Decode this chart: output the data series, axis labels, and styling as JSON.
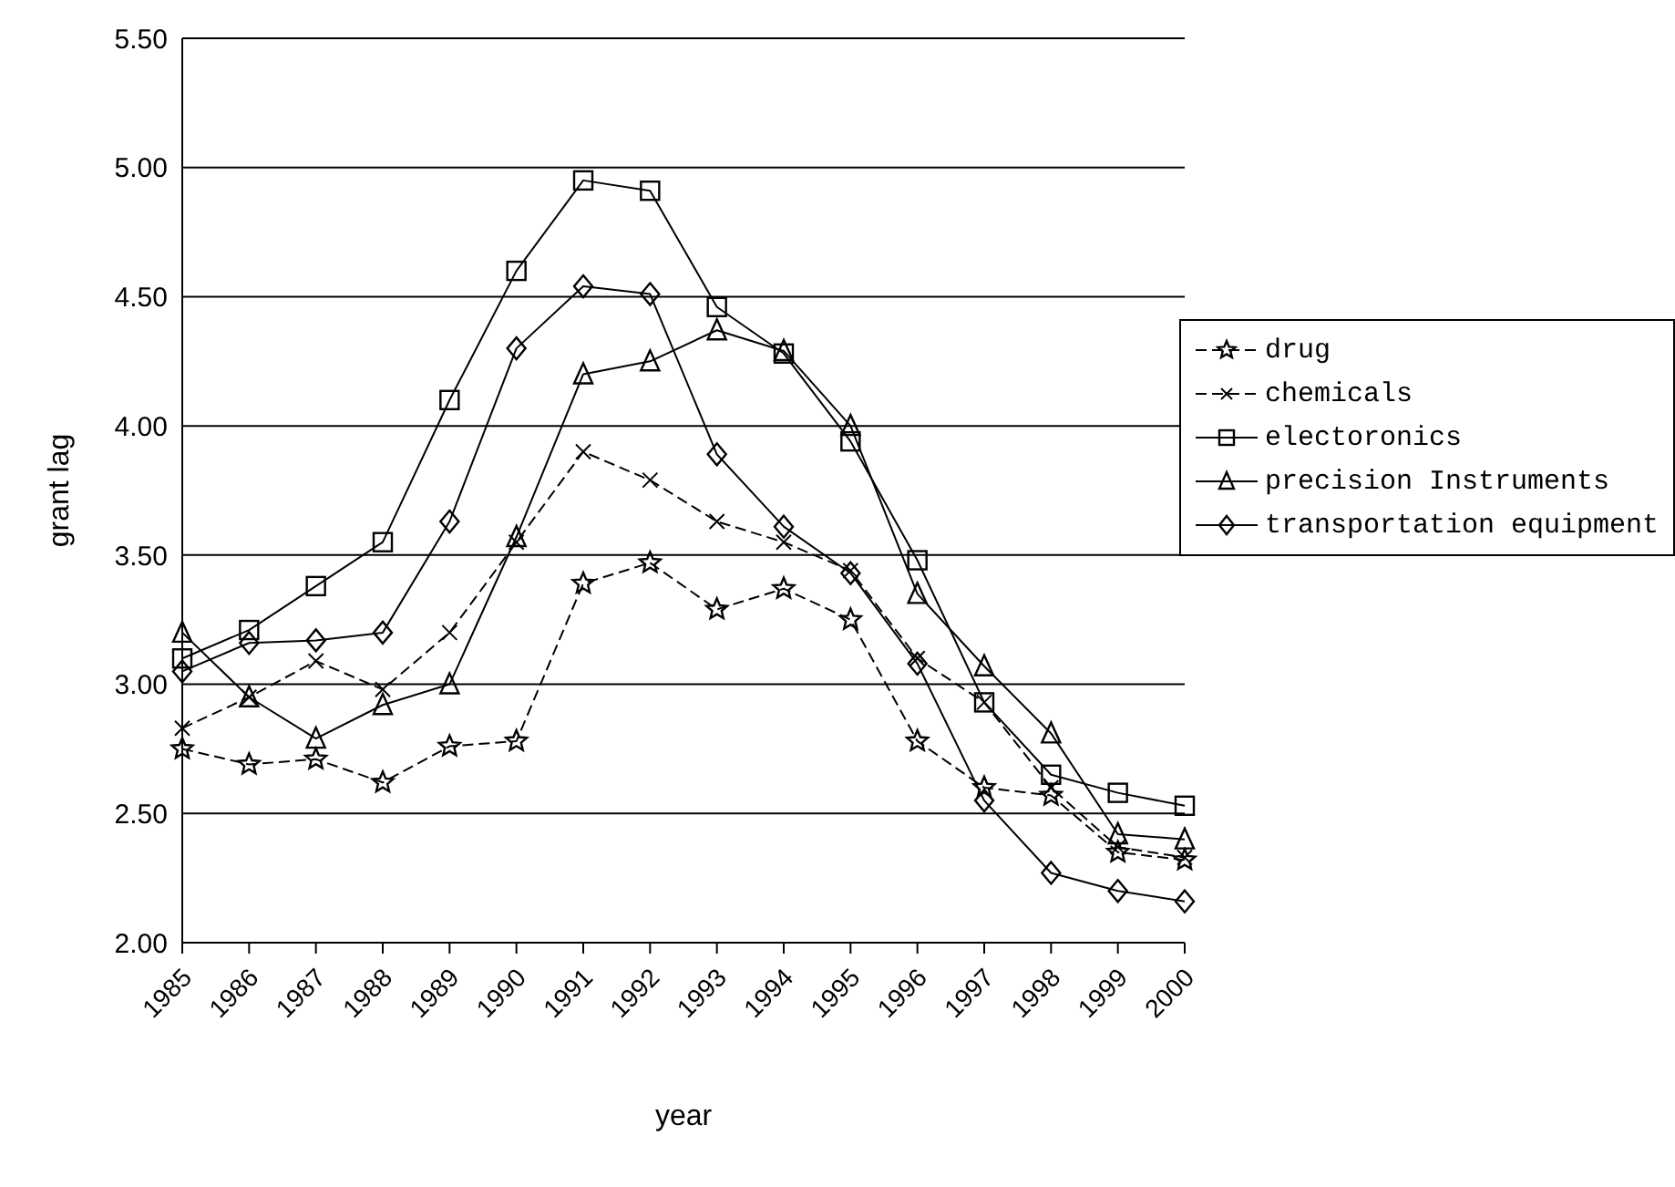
{
  "chart_data": {
    "type": "line",
    "xlabel": "year",
    "ylabel": "grant lag",
    "categories": [
      "1985",
      "1986",
      "1987",
      "1988",
      "1989",
      "1990",
      "1991",
      "1992",
      "1993",
      "1994",
      "1995",
      "1996",
      "1997",
      "1998",
      "1999",
      "2000"
    ],
    "ylim": [
      2.0,
      5.5
    ],
    "yticks": [
      {
        "value": 2.0,
        "label": "2.00"
      },
      {
        "value": 2.5,
        "label": "2.50"
      },
      {
        "value": 3.0,
        "label": "3.00"
      },
      {
        "value": 3.5,
        "label": "3.50"
      },
      {
        "value": 4.0,
        "label": "4.00"
      },
      {
        "value": 4.5,
        "label": "4.50"
      },
      {
        "value": 5.0,
        "label": "5.00"
      },
      {
        "value": 5.5,
        "label": "5.50"
      }
    ],
    "grid": "y",
    "legend": "right",
    "series": [
      {
        "name": "drug",
        "color": "#000000",
        "marker": "star",
        "line_style": "dashed",
        "values": [
          2.75,
          2.69,
          2.71,
          2.62,
          2.76,
          2.78,
          3.39,
          3.47,
          3.29,
          3.37,
          3.25,
          2.78,
          2.6,
          2.57,
          2.35,
          2.32
        ]
      },
      {
        "name": "chemicals",
        "color": "#000000",
        "marker": "cross",
        "line_style": "dashed",
        "values": [
          2.83,
          2.95,
          3.09,
          2.98,
          3.2,
          3.55,
          3.9,
          3.79,
          3.63,
          3.55,
          3.44,
          3.1,
          2.93,
          2.6,
          2.37,
          2.33
        ]
      },
      {
        "name": "electoronics",
        "color": "#000000",
        "marker": "square",
        "line_style": "solid",
        "values": [
          3.1,
          3.21,
          3.38,
          3.55,
          4.1,
          4.6,
          4.95,
          4.91,
          4.46,
          4.28,
          3.94,
          3.48,
          2.93,
          2.65,
          2.58,
          2.53
        ]
      },
      {
        "name": "precision Instruments",
        "color": "#000000",
        "marker": "triangle",
        "line_style": "solid",
        "values": [
          3.2,
          2.95,
          2.79,
          2.92,
          3.0,
          3.57,
          4.2,
          4.25,
          4.37,
          4.29,
          4.0,
          3.35,
          3.07,
          2.81,
          2.42,
          2.4
        ]
      },
      {
        "name": "transportation equipment",
        "color": "#000000",
        "marker": "diamond",
        "line_style": "solid",
        "values": [
          3.05,
          3.16,
          3.17,
          3.2,
          3.63,
          4.3,
          4.54,
          4.51,
          3.89,
          3.61,
          3.43,
          3.08,
          2.55,
          2.27,
          2.2,
          2.16
        ]
      }
    ]
  }
}
